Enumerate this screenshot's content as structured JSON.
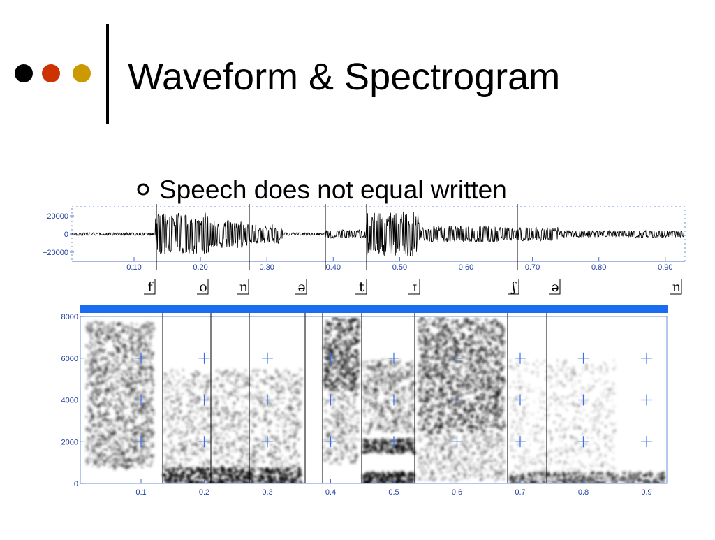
{
  "title": "Waveform & Spectrogram",
  "bullet": "Speech does not equal written",
  "waveform": {
    "yticks": [
      "20000",
      "0",
      "−20000"
    ],
    "xticks": [
      "0.10",
      "0.20",
      "0.30",
      "0.40",
      "0.50",
      "0.60",
      "0.70",
      "0.80",
      "0.90"
    ]
  },
  "segments": [
    "f",
    "o",
    "n",
    "ə",
    "t",
    "ɪ",
    "ʃ",
    "ə",
    "n"
  ],
  "spectrogram": {
    "yticks": [
      "8000",
      "6000",
      "4000",
      "2000",
      "0"
    ],
    "xticks": [
      "0.1",
      "0.2",
      "0.3",
      "0.4",
      "0.5",
      "0.6",
      "0.7",
      "0.8",
      "0.9"
    ]
  }
}
